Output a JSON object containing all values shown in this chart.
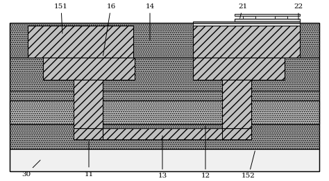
{
  "fig_width": 4.74,
  "fig_height": 2.61,
  "dpi": 100,
  "colors": {
    "white": "#ffffff",
    "substrate": "#f8f8f8",
    "dot_dark": "#aaaaaa",
    "dot_light": "#d0d0d0",
    "hatch_bg": "#c8c8c8",
    "band_light": "#d8d8d8",
    "black": "#000000",
    "very_light": "#e8e8e8"
  }
}
